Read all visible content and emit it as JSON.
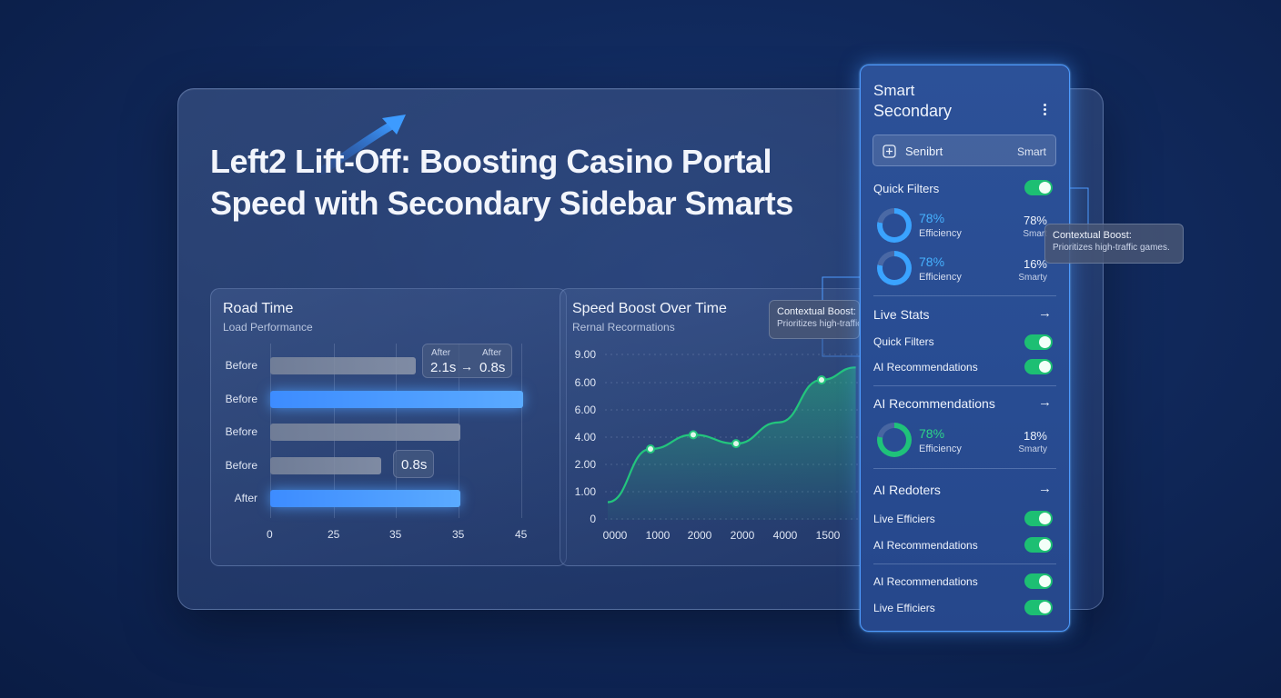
{
  "headline": "Left2 Lift-Off: Boosting Casino Portal Speed with Secondary Sidebar Smarts",
  "load_card": {
    "title": "Road Time",
    "subtitle": "Load Performance",
    "chip_after_1": "After",
    "chip_after_2": "After",
    "chip_from": "2.1s",
    "chip_arrow": "→",
    "chip_to": "0.8s",
    "small_chip": "0.8s",
    "chart_data": {
      "type": "bar",
      "orientation": "horizontal",
      "categories": [
        "Before",
        "Before",
        "Before",
        "Before",
        "After"
      ],
      "values": [
        23,
        40,
        30,
        17.5,
        30
      ],
      "highlighted": [
        false,
        true,
        false,
        false,
        true
      ],
      "x_ticks": [
        "0",
        "25",
        "35",
        "35",
        "45"
      ],
      "colors": {
        "default": "#8d97ab",
        "highlight": "#4a9bff"
      }
    }
  },
  "speed_card": {
    "title": "Speed Boost Over Time",
    "subtitle": "Rernal Recormations",
    "tooltip_title": "Contextual Boost:",
    "tooltip_text": "Prioritizes high-traffic games.",
    "chart_data": {
      "type": "area",
      "y_ticks": [
        "9.00",
        "6.00",
        "6.00",
        "4.00",
        "2.00",
        "1.00",
        "0"
      ],
      "x_ticks": [
        "0000",
        "1000",
        "2000",
        "2000",
        "4000",
        "1500"
      ],
      "points": [
        [
          0,
          1.0
        ],
        [
          1,
          4.0
        ],
        [
          2,
          4.8
        ],
        [
          3,
          4.3
        ],
        [
          4,
          5.5
        ],
        [
          5,
          7.9
        ],
        [
          5.8,
          8.6
        ]
      ],
      "markers": [
        1,
        2,
        3,
        5
      ],
      "color": "#23c57d"
    }
  },
  "sidebar": {
    "title_line1": "Smart",
    "title_line2": "Secondary",
    "menu_icon": "kebab-icon",
    "search_text": "Senibrt",
    "search_right": "Smart",
    "quick_filters": "Quick Filters",
    "metric1_pct": "78%",
    "metric1_label": "Efficiency",
    "metric1_right_pct": "78%",
    "metric1_right_label": "Smart",
    "metric2_pct": "78%",
    "metric2_label": "Efficiency",
    "metric2_right_pct": "16%",
    "metric2_right_label": "Smarty",
    "live_stats": "Live Stats",
    "quick_filters_2": "Quick Filters",
    "ai_rec_1": "AI Recommendations",
    "ai_rec_header": "AI Recommendations",
    "metric3_pct": "78%",
    "metric3_label": "Efficiency",
    "metric3_right_pct": "18%",
    "metric3_right_label": "Smarty",
    "ai_redoters": "AI Redoters",
    "live_efficiers_1": "Live Efficiers",
    "ai_rec_2": "AI Recommendations",
    "ai_rec_3": "AI Recommendations",
    "live_efficiers_2": "Live Efficiers",
    "arrow": "→"
  },
  "side_tooltip": {
    "title": "Contextual Boost:",
    "text": "Prioritizes high-traffic games."
  },
  "colors": {
    "accent": "#4e9bff",
    "toggle_on": "#1dbf73",
    "ring_blue": "#3aa3ff",
    "ring_green": "#1fc27a"
  }
}
